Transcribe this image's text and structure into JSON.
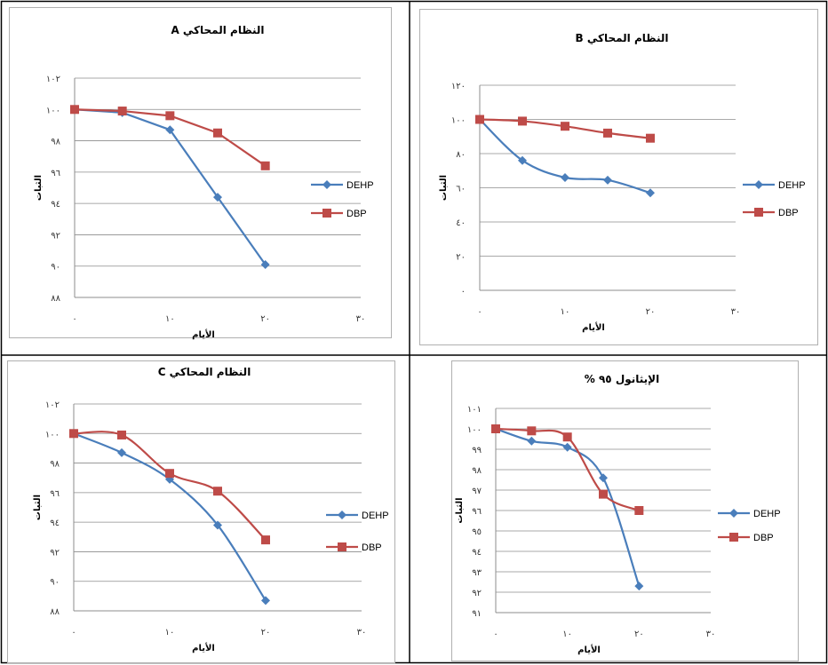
{
  "chart_data": [
    {
      "type": "line",
      "title": "النظام المحاكي A",
      "xlabel": "الأيام",
      "ylabel": "الثبات",
      "xlim": [
        0,
        30
      ],
      "ylim": [
        88,
        102
      ],
      "x_ticks": [
        0,
        10,
        20,
        30
      ],
      "x_tick_labels": [
        "٠",
        "١٠",
        "٢٠",
        "٣٠"
      ],
      "y_ticks": [
        88,
        90,
        92,
        94,
        96,
        98,
        100,
        102
      ],
      "y_tick_labels": [
        "٨٨",
        "٩٠",
        "٩٢",
        "٩٤",
        "٩٦",
        "٩٨",
        "١٠٠",
        "١٠٢"
      ],
      "grid": true,
      "legend": "right",
      "smooth": false,
      "series": [
        {
          "name": "DEHP",
          "color": "#4a7ebb",
          "marker": "diamond",
          "x": [
            0,
            5,
            10,
            15,
            20
          ],
          "y": [
            100,
            99.8,
            98.7,
            94.4,
            90.1
          ]
        },
        {
          "name": "DBP",
          "color": "#be4b48",
          "marker": "square",
          "x": [
            0,
            5,
            10,
            15,
            20
          ],
          "y": [
            100,
            99.9,
            99.6,
            98.5,
            96.4
          ]
        }
      ]
    },
    {
      "type": "line",
      "title": "النظام المحاكي B",
      "xlabel": "الأيام",
      "ylabel": "الثبات",
      "xlim": [
        0,
        30
      ],
      "ylim": [
        0,
        120
      ],
      "x_ticks": [
        0,
        10,
        20,
        30
      ],
      "x_tick_labels": [
        "٠",
        "١٠",
        "٢٠",
        "٣٠"
      ],
      "y_ticks": [
        0,
        20,
        40,
        60,
        80,
        100,
        120
      ],
      "y_tick_labels": [
        "٠",
        "٢٠",
        "٤٠",
        "٦٠",
        "٨٠",
        "١٠٠",
        "١٢٠"
      ],
      "grid": true,
      "legend": "right",
      "smooth": true,
      "series": [
        {
          "name": "DEHP",
          "color": "#4a7ebb",
          "marker": "diamond",
          "x": [
            0,
            5,
            10,
            15,
            20
          ],
          "y": [
            100,
            76,
            66,
            64.5,
            57
          ]
        },
        {
          "name": "DBP",
          "color": "#be4b48",
          "marker": "square",
          "x": [
            0,
            5,
            10,
            15,
            20
          ],
          "y": [
            100,
            99,
            96,
            92,
            89
          ]
        }
      ]
    },
    {
      "type": "line",
      "title": "النظام المحاكي C",
      "xlabel": "الأيام",
      "ylabel": "الثبات",
      "xlim": [
        0,
        30
      ],
      "ylim": [
        88,
        102
      ],
      "x_ticks": [
        0,
        10,
        20,
        30
      ],
      "x_tick_labels": [
        "٠",
        "١٠",
        "٢٠",
        "٣٠"
      ],
      "y_ticks": [
        88,
        90,
        92,
        94,
        96,
        98,
        100,
        102
      ],
      "y_tick_labels": [
        "٨٨",
        "٩٠",
        "٩٢",
        "٩٤",
        "٩٦",
        "٩٨",
        "١٠٠",
        "١٠٢"
      ],
      "grid": true,
      "legend": "right",
      "smooth": true,
      "series": [
        {
          "name": "DEHP",
          "color": "#4a7ebb",
          "marker": "diamond",
          "x": [
            0,
            5,
            10,
            15,
            20
          ],
          "y": [
            100,
            98.7,
            96.9,
            93.8,
            88.7
          ]
        },
        {
          "name": "DBP",
          "color": "#be4b48",
          "marker": "square",
          "x": [
            0,
            5,
            10,
            15,
            20
          ],
          "y": [
            100,
            99.9,
            97.3,
            96.1,
            92.8
          ]
        }
      ]
    },
    {
      "type": "line",
      "title": "الإيثانول ٩٥ %",
      "xlabel": "الأيام",
      "ylabel": "الثبات",
      "xlim": [
        0,
        30
      ],
      "ylim": [
        91,
        101
      ],
      "x_ticks": [
        0,
        10,
        20,
        30
      ],
      "x_tick_labels": [
        "٠",
        "١٠",
        "٢٠",
        "٣٠"
      ],
      "y_ticks": [
        91,
        92,
        93,
        94,
        95,
        96,
        97,
        98,
        99,
        100,
        101
      ],
      "y_tick_labels": [
        "٩١",
        "٩٢",
        "٩٣",
        "٩٤",
        "٩٥",
        "٩٦",
        "٩٧",
        "٩٨",
        "٩٩",
        "١٠٠",
        "١٠١"
      ],
      "grid": true,
      "legend": "right",
      "smooth": true,
      "series": [
        {
          "name": "DEHP",
          "color": "#4a7ebb",
          "marker": "diamond",
          "x": [
            0,
            5,
            10,
            15,
            20
          ],
          "y": [
            100,
            99.4,
            99.1,
            97.6,
            92.3
          ]
        },
        {
          "name": "DBP",
          "color": "#be4b48",
          "marker": "square",
          "x": [
            0,
            5,
            10,
            15,
            20
          ],
          "y": [
            100,
            99.9,
            99.6,
            96.8,
            96
          ]
        }
      ]
    }
  ]
}
